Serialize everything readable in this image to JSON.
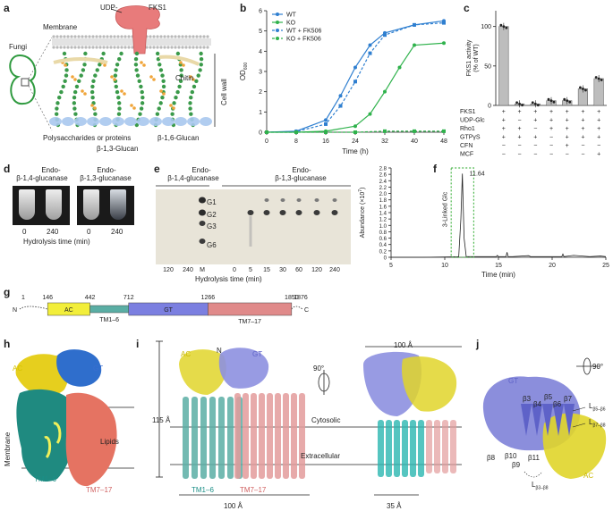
{
  "panels": {
    "a": "a",
    "b": "b",
    "c": "c",
    "d": "d",
    "e": "e",
    "f": "f",
    "g": "g",
    "h": "h",
    "i": "i",
    "j": "j"
  },
  "panel_a": {
    "labels": {
      "membrane": "Membrane",
      "udp": "UDP-",
      "fks1": "FKS1",
      "fungi": "Fungi",
      "chitin": "Chitin",
      "cell_wall": "Cell wall",
      "poly": "Polysaccharides or proteins",
      "b13": "β-1,3-Glucan",
      "b16": "β-1,6-Glucan"
    },
    "colors": {
      "membrane": "#b9b9b9",
      "fks1": "#e87b7b",
      "glucan": "#3a9a4a",
      "b16": "#f0a53a",
      "bottom": "#a9c8ee"
    }
  },
  "panel_b": {
    "chart_data": {
      "type": "line",
      "xlabel": "Time (h)",
      "ylabel": "OD",
      "ylabel_sub": "600",
      "xlim": [
        0,
        48
      ],
      "ylim": [
        0,
        6
      ],
      "xticks": [
        "0",
        "8",
        "16",
        "24",
        "32",
        "40",
        "48"
      ],
      "yticks": [
        "0",
        "1",
        "2",
        "3",
        "4",
        "5",
        "6"
      ],
      "series": [
        {
          "name": "WT",
          "color": "#2f7fd0",
          "dashed": false,
          "x": [
            0,
            8,
            16,
            20,
            24,
            28,
            32,
            40,
            48
          ],
          "y": [
            0,
            0.05,
            0.6,
            1.8,
            3.2,
            4.3,
            4.9,
            5.3,
            5.5
          ]
        },
        {
          "name": "KO",
          "color": "#2fb24c",
          "dashed": false,
          "x": [
            0,
            8,
            16,
            24,
            28,
            32,
            36,
            40,
            48
          ],
          "y": [
            0,
            0,
            0.05,
            0.3,
            0.9,
            2.0,
            3.2,
            4.3,
            4.4
          ]
        },
        {
          "name": "WT + FK506",
          "color": "#2f7fd0",
          "dashed": true,
          "x": [
            0,
            8,
            16,
            20,
            24,
            28,
            32,
            40,
            48
          ],
          "y": [
            0,
            0.03,
            0.4,
            1.3,
            2.5,
            3.9,
            4.8,
            5.3,
            5.4
          ]
        },
        {
          "name": "KO + FK506",
          "color": "#2fb24c",
          "dashed": true,
          "x": [
            0,
            8,
            16,
            24,
            32,
            40,
            48
          ],
          "y": [
            0,
            0,
            0,
            0,
            0.05,
            0.05,
            0.05
          ]
        }
      ]
    }
  },
  "panel_c": {
    "chart_data": {
      "type": "bar",
      "ylabel": "FKS1 activity",
      "ylabel2": "(% of WT)",
      "ylim": [
        0,
        120
      ],
      "yticks": [
        "0",
        "50",
        "100"
      ],
      "values": [
        100,
        2,
        2,
        6,
        6,
        21,
        34
      ],
      "rows": [
        {
          "label": "FKS1",
          "marks": [
            "+",
            "+",
            "+",
            "+",
            "+",
            "+",
            "+"
          ]
        },
        {
          "label": "UDP-Glc",
          "marks": [
            "+",
            "−",
            "+",
            "+",
            "+",
            "+",
            "+"
          ]
        },
        {
          "label": "Rho1",
          "marks": [
            "+",
            "+",
            "−",
            "+",
            "+",
            "+",
            "+"
          ]
        },
        {
          "label": "GTPγS",
          "marks": [
            "+",
            "+",
            "+",
            "−",
            "+",
            "+",
            "+"
          ]
        },
        {
          "label": "CFN",
          "marks": [
            "−",
            "−",
            "−",
            "−",
            "+",
            "−",
            "−"
          ]
        },
        {
          "label": "MCF",
          "marks": [
            "−",
            "−",
            "−",
            "−",
            "−",
            "−",
            "+"
          ]
        }
      ]
    }
  },
  "panel_d": {
    "title1a": "Endo-",
    "title1b": "β-1,4-glucanase",
    "title2a": "Endo-",
    "title2b": "β-1,3-glucanase",
    "t0": "0",
    "t240": "240",
    "t0b": "0",
    "t240b": "240",
    "xlabel": "Hydrolysis time (min)"
  },
  "panel_e": {
    "title1a": "Endo-",
    "title1b": "β-1,4-glucanase",
    "title2a": "Endo-",
    "title2b": "β-1,3-glucanase",
    "g1": "G1",
    "g2": "G2",
    "g3": "G3",
    "g6": "G6",
    "lanes": [
      "120",
      "240",
      "M",
      "0",
      "5",
      "15",
      "30",
      "60",
      "120",
      "240"
    ],
    "xlabel": "Hydrolysis time (min)"
  },
  "panel_f": {
    "chart_data": {
      "type": "line",
      "xlabel": "Time (min)",
      "ylabel": "Abundance (×10",
      "ylabel_sup": "7",
      "xlim": [
        5,
        25
      ],
      "ylim": [
        0,
        2.8
      ],
      "xticks": [
        "5",
        "10",
        "15",
        "20",
        "25"
      ],
      "yticks": [
        "0",
        "0.2",
        "0.4",
        "0.6",
        "0.8",
        "1.0",
        "1.2",
        "1.4",
        "1.6",
        "1.8",
        "2.0",
        "2.2",
        "2.4",
        "2.6",
        "2.8"
      ],
      "peak_label": "11.64",
      "annotation": "3-Linked Glc",
      "x": [
        5,
        8,
        10,
        11.3,
        11.5,
        11.64,
        11.8,
        12,
        14.8,
        14.9,
        15,
        15.7,
        15.8,
        15.9,
        16.3,
        17.8,
        18,
        19.5,
        20.9,
        21,
        21.1,
        22,
        23.5,
        24.5,
        25
      ],
      "y": [
        0,
        0,
        0.01,
        0.02,
        1.2,
        2.62,
        0.6,
        0.02,
        0.02,
        0.06,
        0.02,
        0.02,
        0.16,
        0.02,
        0.02,
        0.05,
        0.02,
        0.02,
        0.02,
        0.1,
        0.02,
        0.06,
        0.02,
        0.04,
        0.02
      ]
    }
  },
  "panel_g": {
    "ticks": [
      "1",
      "146",
      "442",
      "712",
      "1266",
      "1850",
      "1876"
    ],
    "n": "N",
    "c": "C",
    "domains": {
      "ac": "AC",
      "tm16": "TM1–6",
      "gt": "GT",
      "tm717": "TM7–17"
    },
    "colors": {
      "ac": "#f2ee3a",
      "tm16": "#5aaea4",
      "gt": "#7b7fe0",
      "tm717": "#e08a8a"
    }
  },
  "panel_h": {
    "ac": "AC",
    "gt": "GT",
    "lipids": "Lipids",
    "membrane": "Membrane",
    "tm16": "TM1–6",
    "tm717": "TM7–17"
  },
  "panel_i": {
    "ac": "AC",
    "n": "N",
    "gt": "GT",
    "height": "115 Å",
    "rot": "90°",
    "width_top": "100 Å",
    "cyto": "Cytosolic",
    "extra": "Extracellular",
    "tm16": "TM1–6",
    "tm717": "TM7–17",
    "width_bottom": "100 Å",
    "width_right": "35 Å"
  },
  "panel_j": {
    "rot": "90°",
    "gt": "GT",
    "ac": "AC",
    "strands": [
      "β3",
      "β4",
      "β5",
      "β6",
      "β7",
      "β8",
      "β9",
      "β10",
      "β11"
    ],
    "l1": "L",
    "l1s": "β5–β6",
    "l2": "L",
    "l2s": "β7–β8",
    "l3": "L",
    "l3s": "β3–β8"
  }
}
